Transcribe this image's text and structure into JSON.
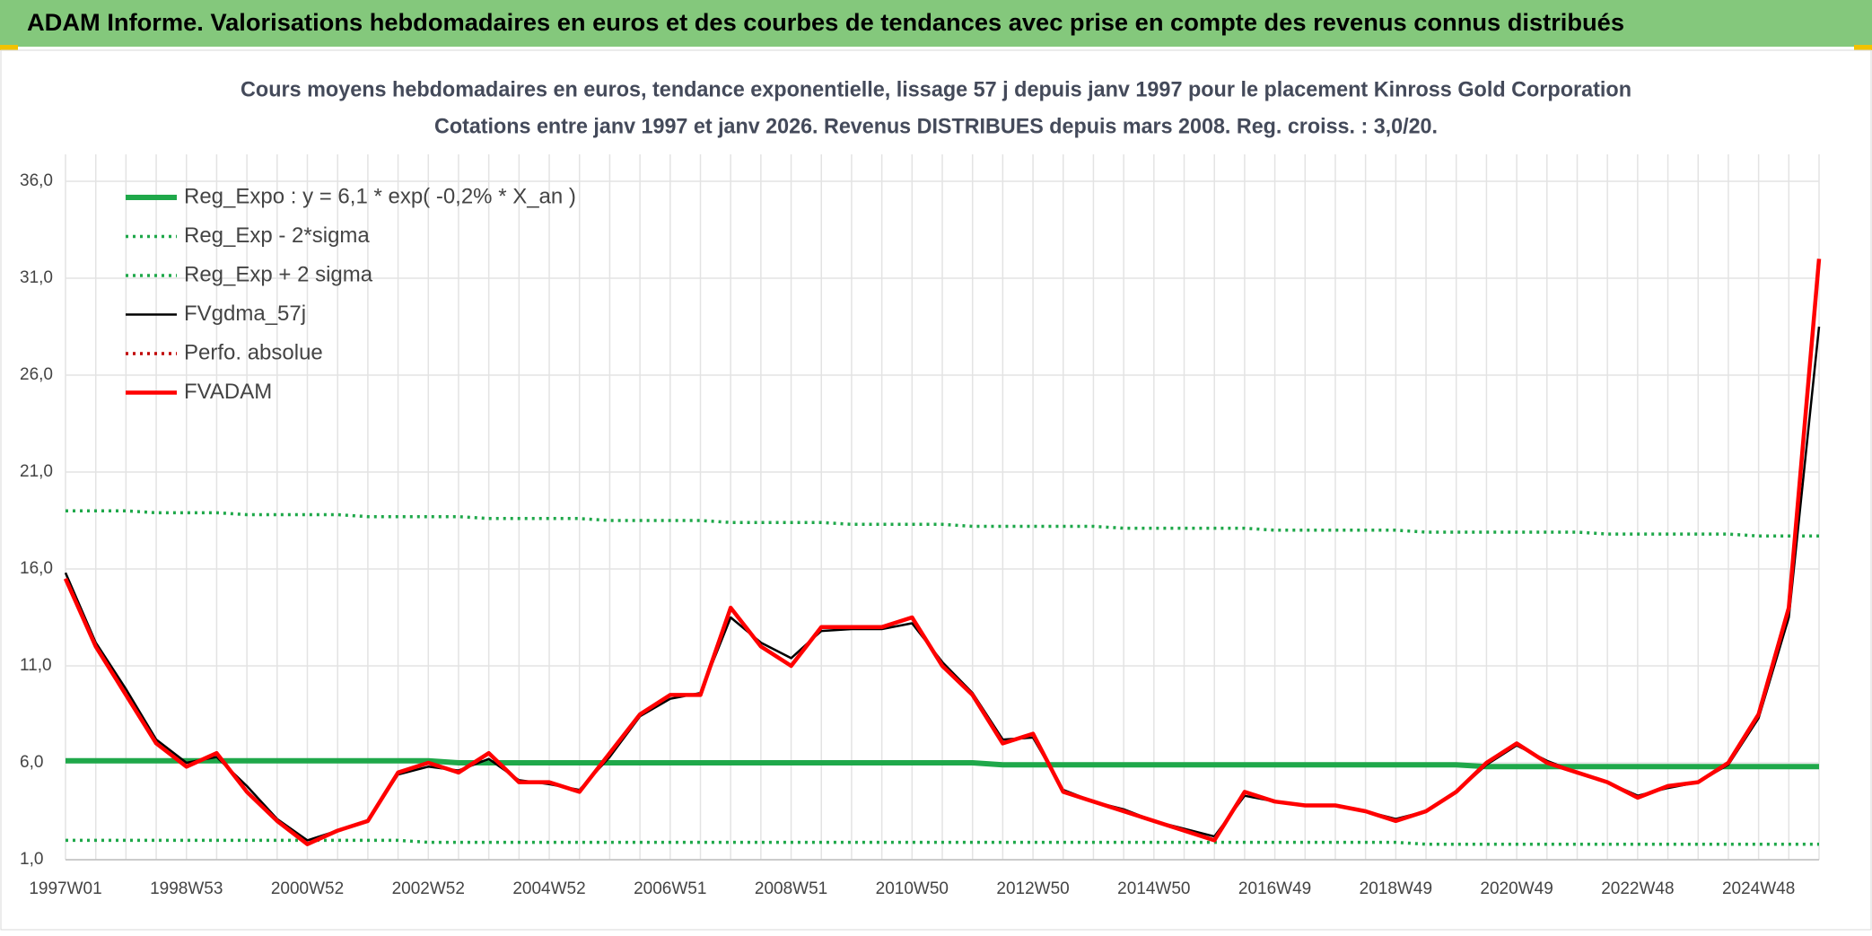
{
  "header": {
    "title": "ADAM Informe. Valorisations hebdomadaires en euros et des courbes de tendances avec prise en compte des revenus connus distribués"
  },
  "chart_data": {
    "type": "line",
    "title": "Cours moyens hebdomadaires en euros, tendance exponentielle, lissage 57 j depuis janv 1997 pour le placement Kinross Gold Corporation",
    "subtitle": "Cotations entre janv 1997 et janv 2026. Revenus DISTRIBUES depuis mars 2008. Reg. croiss. : 3,0/20.",
    "categories": [
      "1997W01",
      null,
      null,
      null,
      "1998W53",
      null,
      null,
      null,
      "2000W52",
      null,
      null,
      null,
      "2002W52",
      null,
      null,
      null,
      "2004W52",
      null,
      null,
      null,
      "2006W51",
      null,
      null,
      null,
      "2008W51",
      null,
      null,
      null,
      "2010W50",
      null,
      null,
      null,
      "2012W50",
      null,
      null,
      null,
      "2014W50",
      null,
      null,
      null,
      "2016W49",
      null,
      null,
      null,
      "2018W49",
      null,
      null,
      null,
      "2020W49",
      null,
      null,
      null,
      "2022W48",
      null,
      null,
      null,
      "2024W48",
      null,
      null
    ],
    "ylim": [
      1,
      36
    ],
    "yticks": [
      {
        "value": 1,
        "label": "1,0"
      },
      {
        "value": 6,
        "label": "6,0"
      },
      {
        "value": 11,
        "label": "11,0"
      },
      {
        "value": 16,
        "label": "16,0"
      },
      {
        "value": 21,
        "label": "21,0"
      },
      {
        "value": 26,
        "label": "26,0"
      },
      {
        "value": 31,
        "label": "31,0"
      },
      {
        "value": 36,
        "label": "36,0"
      }
    ],
    "grid": true,
    "legend": "top-left",
    "series": [
      {
        "name": "Reg_Expo : y = 6,1 * exp( -0,2% *  X_an )",
        "color": "#1fa84a",
        "style": "thick",
        "values": [
          6.1,
          6.1,
          6.1,
          6.1,
          6.1,
          6.1,
          6.1,
          6.1,
          6.1,
          6.1,
          6.1,
          6.1,
          6.1,
          6.0,
          6.0,
          6.0,
          6.0,
          6.0,
          6.0,
          6.0,
          6.0,
          6.0,
          6.0,
          6.0,
          6.0,
          6.0,
          6.0,
          6.0,
          6.0,
          6.0,
          6.0,
          5.9,
          5.9,
          5.9,
          5.9,
          5.9,
          5.9,
          5.9,
          5.9,
          5.9,
          5.9,
          5.9,
          5.9,
          5.9,
          5.9,
          5.9,
          5.9,
          5.8,
          5.8,
          5.8,
          5.8,
          5.8,
          5.8,
          5.8,
          5.8,
          5.8,
          5.8,
          5.8,
          5.8
        ]
      },
      {
        "name": "Reg_Exp - 2*sigma",
        "color": "#1fa84a",
        "style": "dotted",
        "values": [
          2.0,
          2.0,
          2.0,
          2.0,
          2.0,
          2.0,
          2.0,
          2.0,
          2.0,
          2.0,
          2.0,
          2.0,
          1.9,
          1.9,
          1.9,
          1.9,
          1.9,
          1.9,
          1.9,
          1.9,
          1.9,
          1.9,
          1.9,
          1.9,
          1.9,
          1.9,
          1.9,
          1.9,
          1.9,
          1.9,
          1.9,
          1.9,
          1.9,
          1.9,
          1.9,
          1.9,
          1.9,
          1.9,
          1.9,
          1.9,
          1.9,
          1.9,
          1.9,
          1.9,
          1.9,
          1.8,
          1.8,
          1.8,
          1.8,
          1.8,
          1.8,
          1.8,
          1.8,
          1.8,
          1.8,
          1.8,
          1.8,
          1.8,
          1.8
        ]
      },
      {
        "name": "Reg_Exp + 2 sigma",
        "color": "#1fa84a",
        "style": "dotted",
        "values": [
          19.0,
          19.0,
          19.0,
          18.9,
          18.9,
          18.9,
          18.8,
          18.8,
          18.8,
          18.8,
          18.7,
          18.7,
          18.7,
          18.7,
          18.6,
          18.6,
          18.6,
          18.6,
          18.5,
          18.5,
          18.5,
          18.5,
          18.4,
          18.4,
          18.4,
          18.4,
          18.3,
          18.3,
          18.3,
          18.3,
          18.2,
          18.2,
          18.2,
          18.2,
          18.2,
          18.1,
          18.1,
          18.1,
          18.1,
          18.1,
          18.0,
          18.0,
          18.0,
          18.0,
          18.0,
          17.9,
          17.9,
          17.9,
          17.9,
          17.9,
          17.9,
          17.8,
          17.8,
          17.8,
          17.8,
          17.8,
          17.7,
          17.7,
          17.7
        ]
      },
      {
        "name": "FVgdma_57j",
        "color": "#000000",
        "style": "thin",
        "values": [
          15.8,
          12.2,
          9.8,
          7.2,
          6.0,
          6.3,
          4.8,
          3.1,
          2.0,
          2.5,
          3.0,
          5.4,
          5.8,
          5.6,
          6.2,
          5.1,
          4.9,
          4.6,
          6.3,
          8.4,
          9.3,
          9.6,
          13.5,
          12.2,
          11.4,
          12.8,
          12.9,
          12.9,
          13.2,
          11.2,
          9.6,
          7.2,
          7.3,
          4.6,
          4.0,
          3.6,
          3.0,
          2.6,
          2.2,
          4.3,
          4.0,
          3.8,
          3.8,
          3.5,
          3.1,
          3.5,
          4.5,
          5.9,
          6.9,
          6.1,
          5.5,
          5.0,
          4.3,
          4.7,
          5.0,
          5.9,
          8.3,
          13.5,
          28.5
        ]
      },
      {
        "name": "Perfo. absolue",
        "color": "#c00000",
        "style": "dotted",
        "values": [
          15.5,
          12.0,
          9.5,
          7.0,
          5.8,
          6.5,
          4.5,
          3.0,
          1.8,
          2.5,
          3.0,
          5.5,
          6.0,
          5.5,
          6.5,
          5.0,
          5.0,
          4.5,
          6.5,
          8.5,
          9.5,
          9.5,
          14.0,
          12.0,
          11.0,
          13.0,
          13.0,
          13.0,
          13.5,
          11.0,
          9.5,
          7.0,
          7.5,
          4.5,
          4.0,
          3.5,
          3.0,
          2.5,
          2.0,
          4.5,
          4.0,
          3.8,
          3.8,
          3.5,
          3.0,
          3.5,
          4.5,
          6.0,
          7.0,
          6.0,
          5.5,
          5.0,
          4.2,
          4.8,
          5.0,
          6.0,
          8.5,
          14.0,
          32.0
        ]
      },
      {
        "name": "FVADAM",
        "color": "#ff0000",
        "style": "medium",
        "values": [
          15.5,
          12.0,
          9.5,
          7.0,
          5.8,
          6.5,
          4.5,
          3.0,
          1.8,
          2.5,
          3.0,
          5.5,
          6.0,
          5.5,
          6.5,
          5.0,
          5.0,
          4.5,
          6.5,
          8.5,
          9.5,
          9.5,
          14.0,
          12.0,
          11.0,
          13.0,
          13.0,
          13.0,
          13.5,
          11.0,
          9.5,
          7.0,
          7.5,
          4.5,
          4.0,
          3.5,
          3.0,
          2.5,
          2.0,
          4.5,
          4.0,
          3.8,
          3.8,
          3.5,
          3.0,
          3.5,
          4.5,
          6.0,
          7.0,
          6.0,
          5.5,
          5.0,
          4.2,
          4.8,
          5.0,
          6.0,
          8.5,
          14.0,
          32.0
        ]
      }
    ]
  }
}
